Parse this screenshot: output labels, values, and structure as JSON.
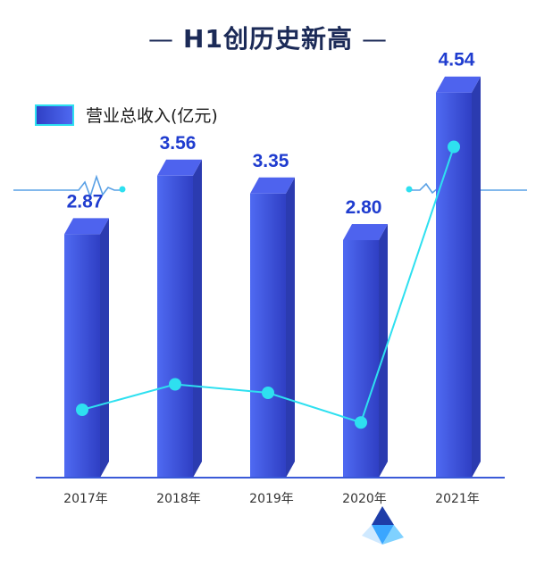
{
  "header": {
    "title": "H1创历史新高"
  },
  "chart_data": {
    "type": "bar",
    "categories": [
      "2017年",
      "2018年",
      "2019年",
      "2020年",
      "2021年"
    ],
    "series": [
      {
        "name": "营业总收入(亿元)",
        "values": [
          2.87,
          3.56,
          3.35,
          2.8,
          4.54
        ]
      }
    ],
    "data_labels": [
      "2.87",
      "3.56",
      "3.35",
      "2.80",
      "4.54"
    ],
    "trend_line": [
      0.8,
      1.1,
      1.0,
      0.65,
      3.9
    ],
    "ylim": [
      0,
      5
    ],
    "grid": false,
    "legend_position": "top-left",
    "colors": {
      "bar_front": "#3b4fd9",
      "bar_side": "#2b3bb0",
      "bar_top": "#4e63ee",
      "line": "#2ee0f0",
      "value_text": "#1f3ccf",
      "axis": "#3a5ad8"
    }
  }
}
